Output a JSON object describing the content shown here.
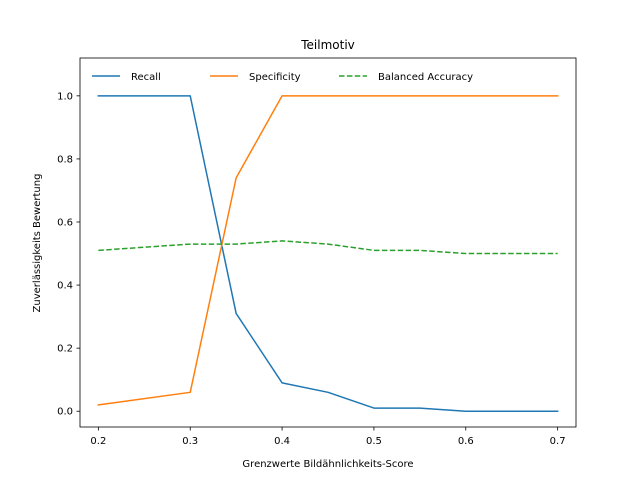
{
  "chart_data": {
    "type": "line",
    "title": "Teilmotiv",
    "xlabel": "Grenzwerte Bildähnlichkeits-Score",
    "ylabel": "Zuverlässigkeits Bewertung",
    "x": [
      0.2,
      0.3,
      0.35,
      0.4,
      0.45,
      0.5,
      0.55,
      0.6,
      0.7
    ],
    "xlim": [
      0.18,
      0.72
    ],
    "ylim": [
      -0.05,
      1.12
    ],
    "xticks": [
      0.2,
      0.3,
      0.4,
      0.5,
      0.6,
      0.7
    ],
    "xtick_labels": [
      "0.2",
      "0.3",
      "0.4",
      "0.5",
      "0.6",
      "0.7"
    ],
    "yticks": [
      0.0,
      0.2,
      0.4,
      0.6,
      0.8,
      1.0
    ],
    "ytick_labels": [
      "0.0",
      "0.2",
      "0.4",
      "0.6",
      "0.8",
      "1.0"
    ],
    "grid": false,
    "legend_position": "top",
    "series": [
      {
        "name": "Recall",
        "color": "#1f77b4",
        "dash": "solid",
        "values": [
          1.0,
          1.0,
          0.31,
          0.09,
          0.06,
          0.01,
          0.01,
          0.0,
          0.0
        ]
      },
      {
        "name": "Specificity",
        "color": "#ff7f0e",
        "dash": "solid",
        "values": [
          0.02,
          0.06,
          0.74,
          1.0,
          1.0,
          1.0,
          1.0,
          1.0,
          1.0
        ]
      },
      {
        "name": "Balanced Accuracy",
        "color": "#2ca02c",
        "dash": "dashed",
        "values": [
          0.51,
          0.53,
          0.53,
          0.54,
          0.53,
          0.51,
          0.51,
          0.5,
          0.5
        ]
      }
    ]
  }
}
